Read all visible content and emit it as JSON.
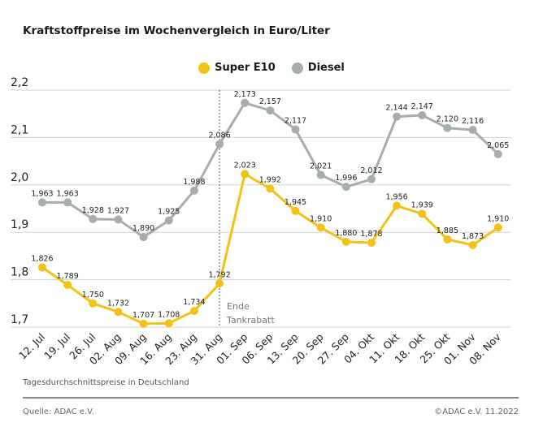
{
  "title": "Kraftstoffpreise im Wochenvergleich in Euro/Liter",
  "note": "Tagesdurchschnittspreise in Deutschland",
  "source": "Quelle: ADAC e.V.",
  "copyright": "©ADAC e.V.  11.2022",
  "chart_data": {
    "type": "line",
    "title": "Kraftstoffpreise im Wochenvergleich in Euro/Liter",
    "categories": [
      "12. Jul",
      "19. Jul",
      "26. Jul",
      "02. Aug",
      "09. Aug",
      "16. Aug",
      "23. Aug",
      "31. Aug",
      "01. Sep",
      "06. Sep",
      "13. Sep",
      "20. Sep",
      "27. Sep",
      "04. Okt",
      "11. Okt",
      "18. Okt",
      "25. Okt",
      "01. Nov",
      "08. Nov"
    ],
    "series": [
      {
        "name": "Super E10",
        "color": "#f2c316",
        "values": [
          1.826,
          1.789,
          1.75,
          1.732,
          1.707,
          1.708,
          1.734,
          1.792,
          2.023,
          1.992,
          1.945,
          1.91,
          1.88,
          1.878,
          1.956,
          1.939,
          1.885,
          1.873,
          1.91
        ]
      },
      {
        "name": "Diesel",
        "color": "#a5aeab",
        "values": [
          1.963,
          1.963,
          1.928,
          1.927,
          1.89,
          1.925,
          1.988,
          2.086,
          2.173,
          2.157,
          2.117,
          2.021,
          1.996,
          2.012,
          2.144,
          2.147,
          2.12,
          2.116,
          2.065
        ]
      }
    ],
    "ylim": [
      1.7,
      2.2
    ],
    "yticks": [
      "1,7",
      "1,8",
      "1,9",
      "2,0",
      "2,1",
      "2,2"
    ],
    "grid": true,
    "legend": "top-center",
    "annotation": {
      "category": "31. Aug",
      "text_line1": "Ende",
      "text_line2": "Tankrabatt"
    }
  }
}
